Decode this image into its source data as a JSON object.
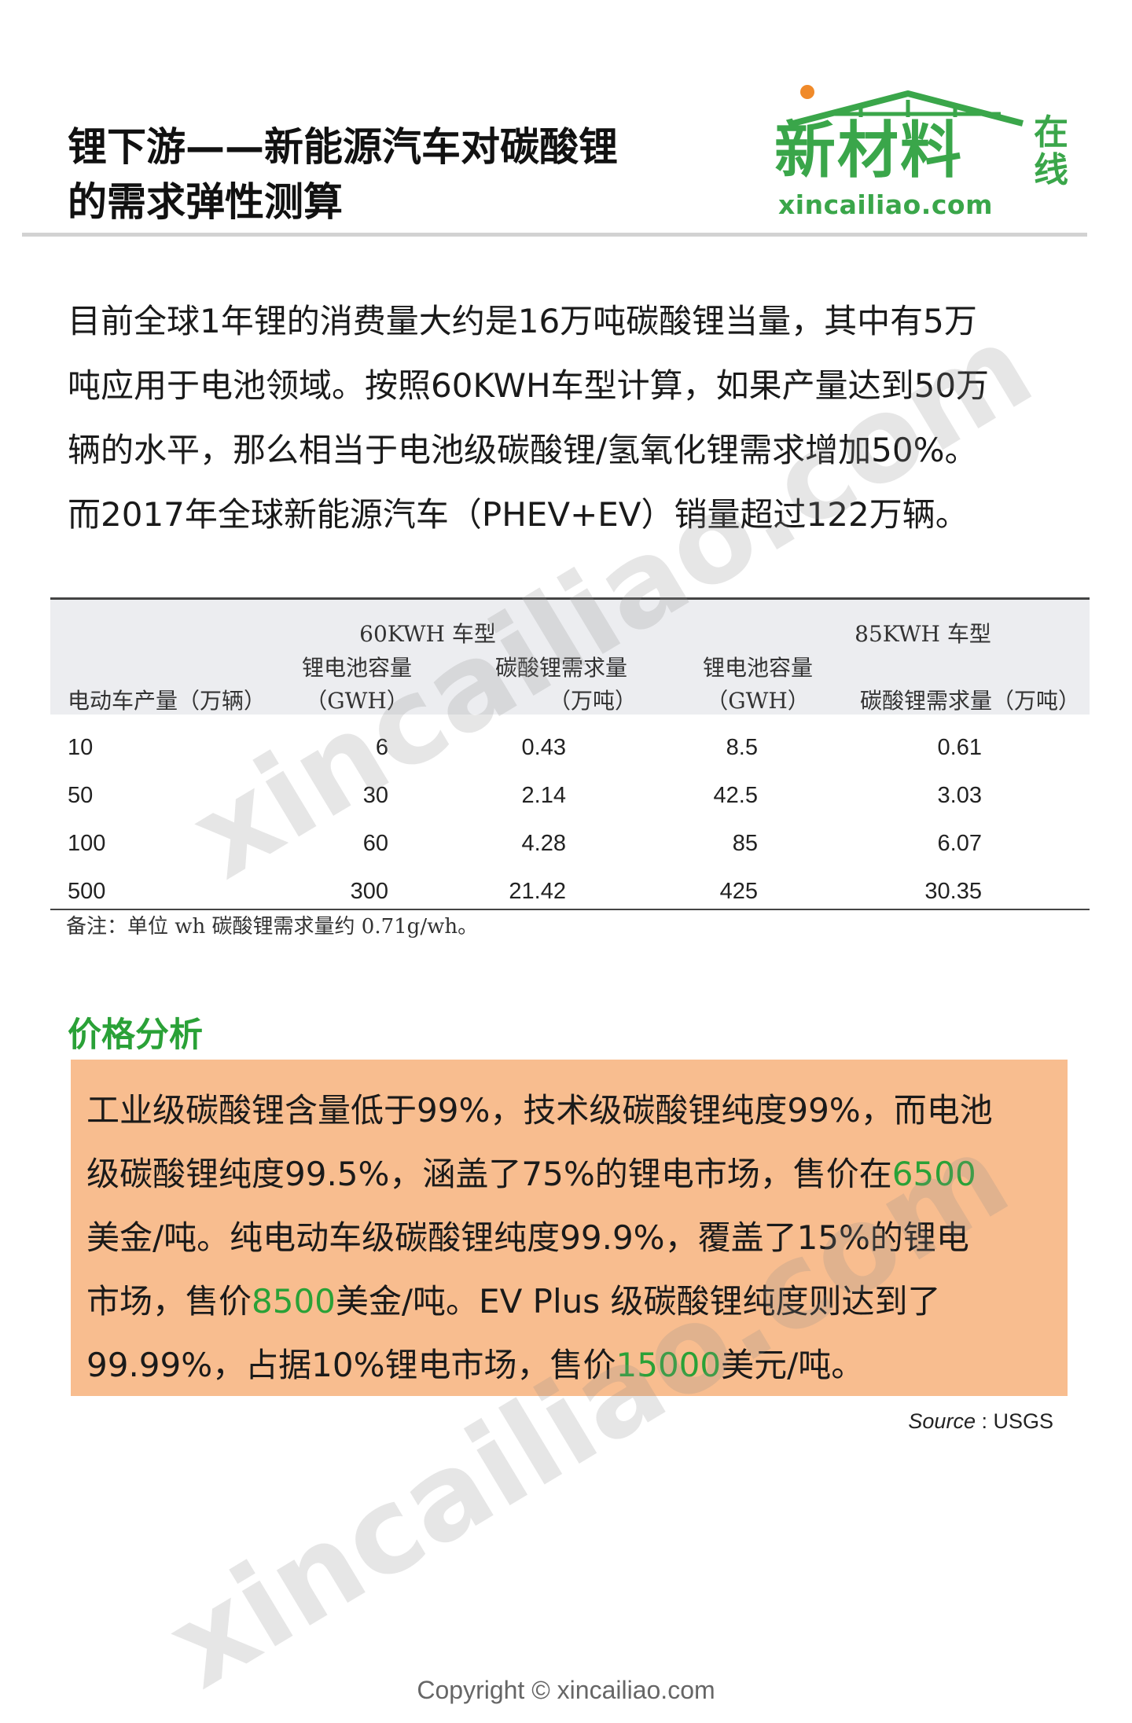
{
  "header": {
    "title_line1": "锂下游——新能源汽车对碳酸锂",
    "title_line2": "的需求弹性测算",
    "logo_main": "新材料",
    "logo_side": "在线",
    "logo_domain": "xincailiao.com",
    "brand_color": "#3aa64a"
  },
  "intro": {
    "lines": [
      "目前全球1年锂的消费量大约是16万吨碳酸锂当量，其中有5万",
      "吨应用于电池领域。按照60KWH车型计算，如果产量达到50万",
      "辆的水平，那么相当于电池级碳酸锂/氢氧化锂需求增加50%。",
      "而2017年全球新能源汽车（PHEV+EV）销量超过122万辆。"
    ]
  },
  "table": {
    "group_60": "60KWH 车型",
    "group_85": "85KWH 车型",
    "col_production": "电动车产量（万辆）",
    "col_capacity_line1": "锂电池容量",
    "col_capacity_line2": "（GWH）",
    "col_demand60_line1": "碳酸锂需求量",
    "col_demand60_line2": "（万吨）",
    "col_demand85": "碳酸锂需求量（万吨）",
    "rows": [
      [
        "10",
        "6",
        "0.43",
        "8.5",
        "0.61"
      ],
      [
        "50",
        "30",
        "2.14",
        "42.5",
        "3.03"
      ],
      [
        "100",
        "60",
        "4.28",
        "85",
        "6.07"
      ],
      [
        "500",
        "300",
        "21.42",
        "425",
        "30.35"
      ]
    ],
    "note": "备注：单位 wh 碳酸锂需求量约 0.71g/wh。"
  },
  "price": {
    "section_title": "价格分析",
    "line1": "工业级碳酸锂含量低于99%，技术级碳酸锂纯度99%，而电池",
    "line2_a": "级碳酸锂纯度99.5%，涵盖了75%的锂电市场，售价在",
    "line2_hl": "6500",
    "line3": "美金/吨。纯电动车级碳酸锂纯度99.9%，覆盖了15%的锂电",
    "line4_a": "市场，售价",
    "line4_hl": "8500",
    "line4_b": "美金/吨。EV Plus 级碳酸锂纯度则达到了",
    "line5_a": "99.99%，占据10%锂电市场，售价",
    "line5_hl": "15000",
    "line5_b": "美元/吨。",
    "box_color": "#f8bd8f",
    "highlight_color": "#2aa137"
  },
  "source": {
    "label": "Source",
    "value": " : USGS"
  },
  "watermark": "xincailiao.com",
  "copyright": "Copyright © xincailiao.com"
}
